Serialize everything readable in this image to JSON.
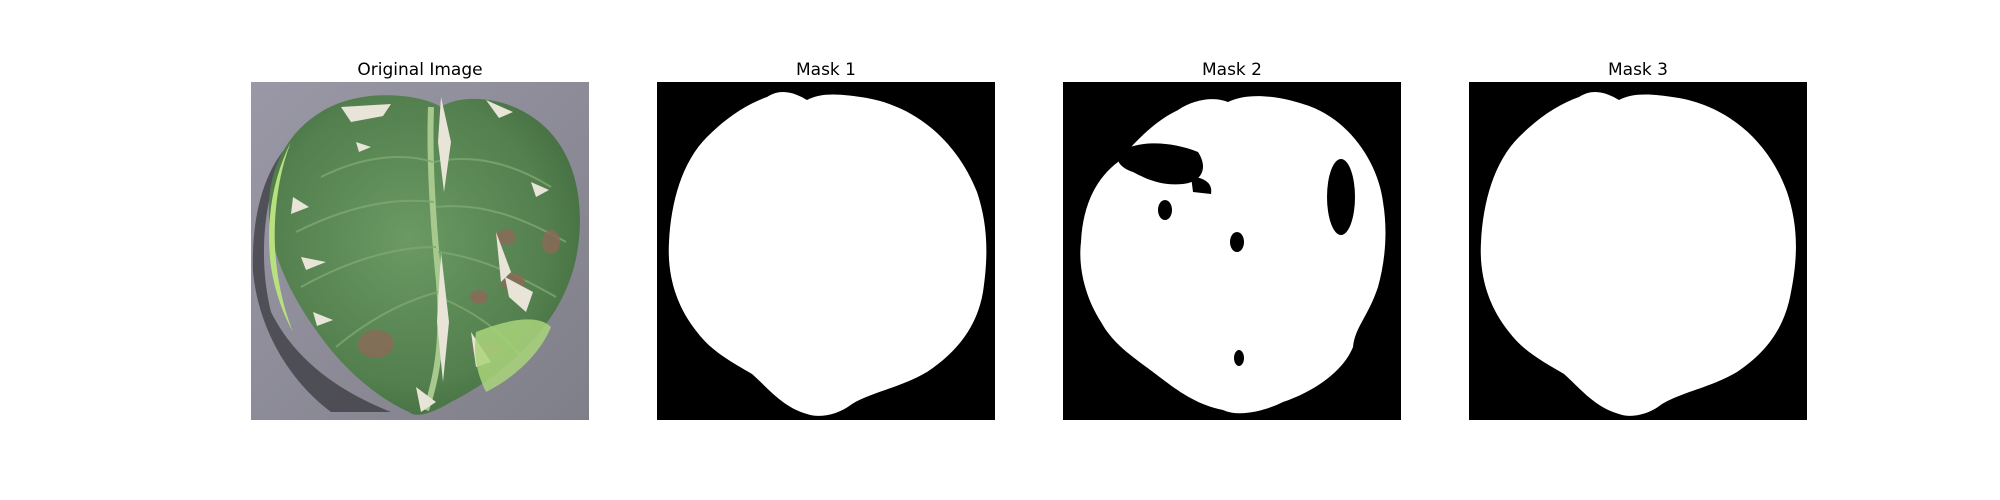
{
  "figure": {
    "panels": [
      {
        "title": "Original Image"
      },
      {
        "title": "Mask 1"
      },
      {
        "title": "Mask 2"
      },
      {
        "title": "Mask 3"
      }
    ]
  },
  "colors": {
    "background": "#ffffff",
    "mask_background": "#000000",
    "mask_foreground": "#ffffff",
    "photo_background": "#8c8c97",
    "leaf_green": "#5a8b55",
    "leaf_dark_green": "#3f6b41",
    "leaf_highlight": "#a9d37a",
    "lesion_brown": "#8a6b58",
    "spot_white": "#e8e4d8"
  }
}
